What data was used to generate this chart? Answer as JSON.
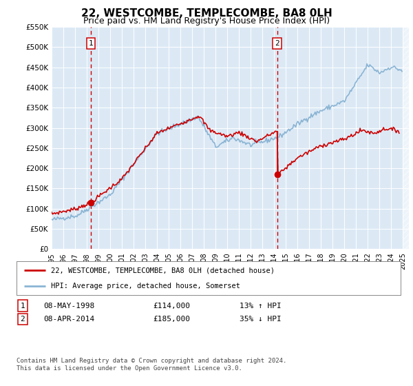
{
  "title": "22, WESTCOMBE, TEMPLECOMBE, BA8 0LH",
  "subtitle": "Price paid vs. HM Land Registry's House Price Index (HPI)",
  "title_fontsize": 11,
  "subtitle_fontsize": 9,
  "ylim": [
    0,
    550000
  ],
  "yticks": [
    0,
    50000,
    100000,
    150000,
    200000,
    250000,
    300000,
    350000,
    400000,
    450000,
    500000,
    550000
  ],
  "ytick_labels": [
    "£0",
    "£50K",
    "£100K",
    "£150K",
    "£200K",
    "£250K",
    "£300K",
    "£350K",
    "£400K",
    "£450K",
    "£500K",
    "£550K"
  ],
  "xlim_start": 1995.0,
  "xlim_end": 2025.5,
  "plot_bg_color": "#dce9f5",
  "grid_color": "#ffffff",
  "sale1_x": 1998.35,
  "sale1_y": 114000,
  "sale2_x": 2014.27,
  "sale2_y": 185000,
  "red_line_color": "#cc0000",
  "blue_line_color": "#8ab4d4",
  "legend_line1": "22, WESTCOMBE, TEMPLECOMBE, BA8 0LH (detached house)",
  "legend_line2": "HPI: Average price, detached house, Somerset",
  "table_row1": [
    "1",
    "08-MAY-1998",
    "£114,000",
    "13% ↑ HPI"
  ],
  "table_row2": [
    "2",
    "08-APR-2014",
    "£185,000",
    "35% ↓ HPI"
  ],
  "footer": "Contains HM Land Registry data © Crown copyright and database right 2024.\nThis data is licensed under the Open Government Licence v3.0."
}
